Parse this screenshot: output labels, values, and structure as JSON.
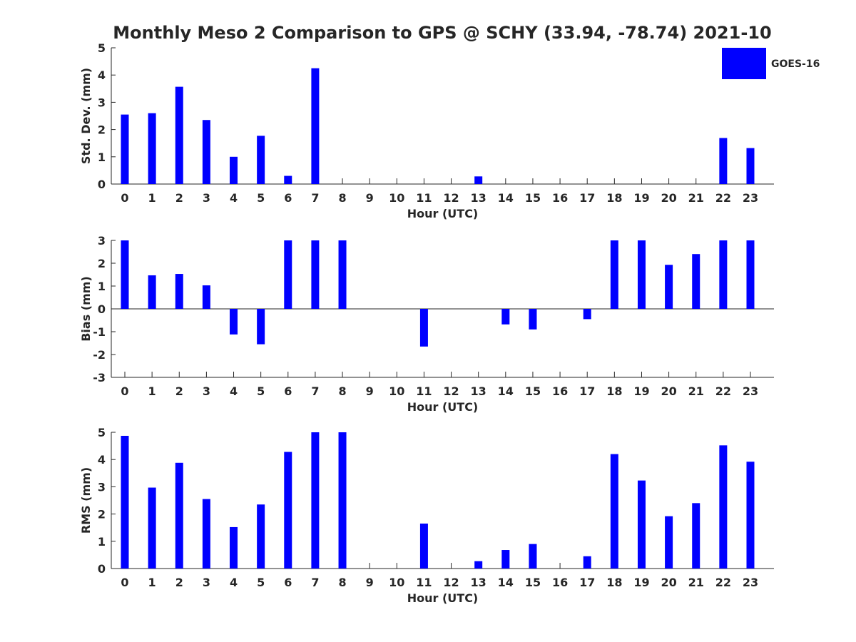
{
  "chart_data": {
    "type": "bar",
    "title": "Monthly Meso 2 Comparison to GPS @ SCHY (33.94, -78.74) 2021-10",
    "legend": {
      "label": "GOES-16",
      "color": "#0000ff",
      "placement": "top-right"
    },
    "bar_color": "#0000ff",
    "categories": [
      "0",
      "1",
      "2",
      "3",
      "4",
      "5",
      "6",
      "7",
      "8",
      "9",
      "10",
      "11",
      "12",
      "13",
      "14",
      "15",
      "16",
      "17",
      "18",
      "19",
      "20",
      "21",
      "22",
      "23"
    ],
    "panels": [
      {
        "name": "std-dev",
        "ylabel": "Std. Dev. (mm)",
        "xlabel": "Hour (UTC)",
        "ylim": [
          0,
          5
        ],
        "yticks": [
          0,
          1,
          2,
          3,
          4,
          5
        ],
        "values": [
          2.55,
          2.6,
          3.57,
          2.35,
          1.0,
          1.77,
          0.3,
          4.25,
          0,
          0,
          0,
          0,
          0,
          0.28,
          0,
          0,
          0,
          0,
          0,
          0,
          0,
          0,
          1.69,
          1.32
        ]
      },
      {
        "name": "bias",
        "ylabel": "Bias (mm)",
        "xlabel": "Hour (UTC)",
        "ylim": [
          -3,
          3
        ],
        "yticks": [
          -3,
          -2,
          -1,
          0,
          1,
          2,
          3
        ],
        "values": [
          3.0,
          1.47,
          1.53,
          1.03,
          -1.12,
          -1.55,
          3.0,
          3.0,
          3.0,
          0,
          0,
          -1.65,
          0,
          0,
          -0.68,
          -0.9,
          0,
          -0.45,
          3.0,
          3.0,
          1.93,
          2.4,
          3.0,
          3.0
        ]
      },
      {
        "name": "rms",
        "ylabel": "RMS (mm)",
        "xlabel": "Hour (UTC)",
        "ylim": [
          0,
          5
        ],
        "yticks": [
          0,
          1,
          2,
          3,
          4,
          5
        ],
        "values": [
          4.87,
          2.97,
          3.88,
          2.55,
          1.52,
          2.35,
          4.28,
          5.0,
          5.0,
          0,
          0,
          1.65,
          0,
          0.27,
          0.68,
          0.9,
          0,
          0.45,
          4.2,
          3.23,
          1.92,
          2.4,
          4.52,
          3.92
        ]
      }
    ]
  }
}
